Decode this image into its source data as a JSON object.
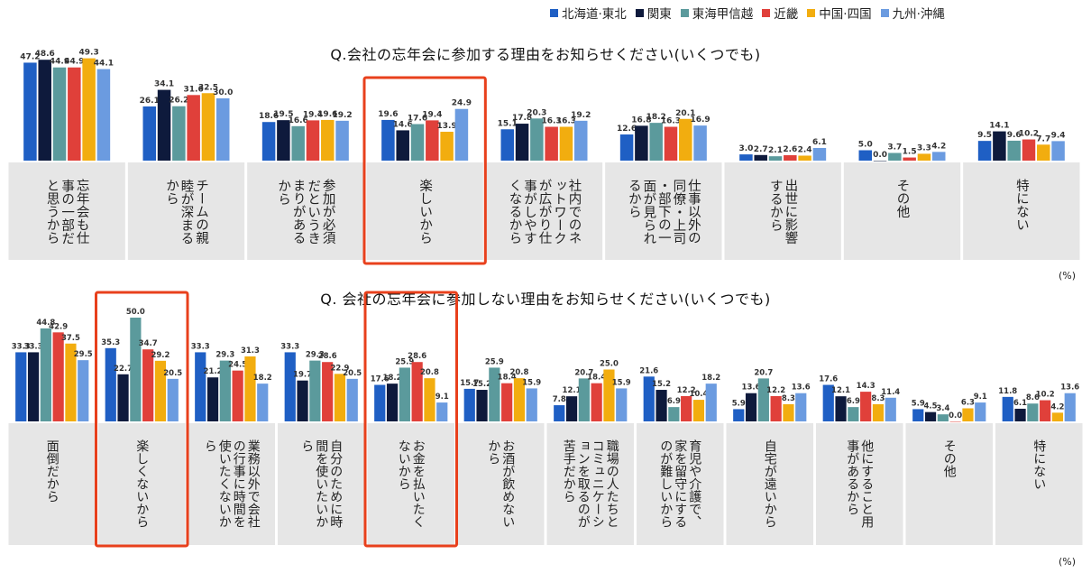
{
  "legend": [
    "北海道·東北",
    "関東",
    "東海甲信越",
    "近畿",
    "中国·四国",
    "九州·沖縄"
  ],
  "colors": [
    "#1f5fc4",
    "#0e1a3c",
    "#5b9a9c",
    "#e0403a",
    "#f2ad0f",
    "#6b9be0"
  ],
  "highlight_color": "#e8401c",
  "chart_data": [
    {
      "type": "bar",
      "title": "Q.会社の忘年会に参加する理由をお知らせください(いくつでも)",
      "unit": "(%)",
      "categories": [
        "忘年会も仕事の一部だと思うから",
        "チームの親睦が深まるから",
        "参加が必須だというきまりがあるから",
        "楽しいから",
        "社内でのネットワークが広がり仕事がしやすくなるから",
        "仕事以外の同僚・上司・部下の一面が見られるから",
        "出世に影響するから",
        "その他",
        "特にない"
      ],
      "highlighted": [
        "楽しいから"
      ],
      "series": [
        {
          "name": "北海道·東北",
          "values": [
            47.2,
            26.1,
            18.6,
            19.6,
            15.1,
            12.6,
            3.0,
            5.0,
            9.5
          ]
        },
        {
          "name": "関東",
          "values": [
            48.6,
            34.1,
            19.5,
            14.6,
            17.8,
            16.8,
            2.7,
            0.0,
            14.1
          ]
        },
        {
          "name": "東海甲信越",
          "values": [
            44.9,
            26.2,
            16.6,
            17.6,
            20.3,
            18.2,
            2.1,
            3.7,
            9.6
          ]
        },
        {
          "name": "近畿",
          "values": [
            44.9,
            31.6,
            19.4,
            19.4,
            16.3,
            16.3,
            2.6,
            1.5,
            10.2
          ]
        },
        {
          "name": "中国·四国",
          "values": [
            49.3,
            32.5,
            19.6,
            13.9,
            16.3,
            20.1,
            2.4,
            3.3,
            7.7
          ]
        },
        {
          "name": "九州·沖縄",
          "values": [
            44.1,
            30.0,
            19.2,
            24.9,
            19.2,
            16.9,
            6.1,
            4.2,
            9.4
          ]
        }
      ]
    },
    {
      "type": "bar",
      "title": "Q. 会社の忘年会に参加しない理由をお知らせください(いくつでも)",
      "unit": "(%)",
      "categories": [
        "面倒だから",
        "楽しくないから",
        "業務以外で会社の行事に時間を使いたくないから",
        "自分のために時間を使いたいから",
        "お金を払いたくないから",
        "お酒が飲めないから",
        "職場の人たちとコミュニケーションを取るのが苦手だから",
        "育児や介護で、家を留守にするのが難しいから",
        "自宅が遠いから",
        "他にすること用事があるから",
        "その他",
        "特にない"
      ],
      "highlighted": [
        "楽しくないから",
        "お金を払いたくないから"
      ],
      "series": [
        {
          "name": "北海道·東北",
          "values": [
            33.3,
            35.3,
            33.3,
            33.3,
            17.6,
            15.7,
            7.8,
            21.6,
            5.9,
            17.6,
            5.9,
            11.8
          ]
        },
        {
          "name": "関東",
          "values": [
            33.3,
            22.7,
            21.2,
            19.7,
            18.2,
            15.2,
            12.1,
            15.2,
            13.6,
            12.1,
            4.5,
            6.1
          ]
        },
        {
          "name": "東海甲信越",
          "values": [
            44.8,
            50.0,
            29.3,
            29.3,
            25.9,
            25.9,
            20.7,
            6.9,
            20.7,
            6.9,
            3.4,
            8.6
          ]
        },
        {
          "name": "近畿",
          "values": [
            42.9,
            34.7,
            24.5,
            28.6,
            28.6,
            18.4,
            18.4,
            12.2,
            12.2,
            14.3,
            0.0,
            10.2
          ]
        },
        {
          "name": "中国·四国",
          "values": [
            37.5,
            29.2,
            31.3,
            22.9,
            20.8,
            20.8,
            25.0,
            10.4,
            8.3,
            8.3,
            6.3,
            4.2
          ]
        },
        {
          "name": "九州·沖縄",
          "values": [
            29.5,
            20.5,
            18.2,
            20.5,
            9.1,
            15.9,
            15.9,
            18.2,
            13.6,
            11.4,
            9.1,
            13.6
          ]
        }
      ]
    }
  ]
}
